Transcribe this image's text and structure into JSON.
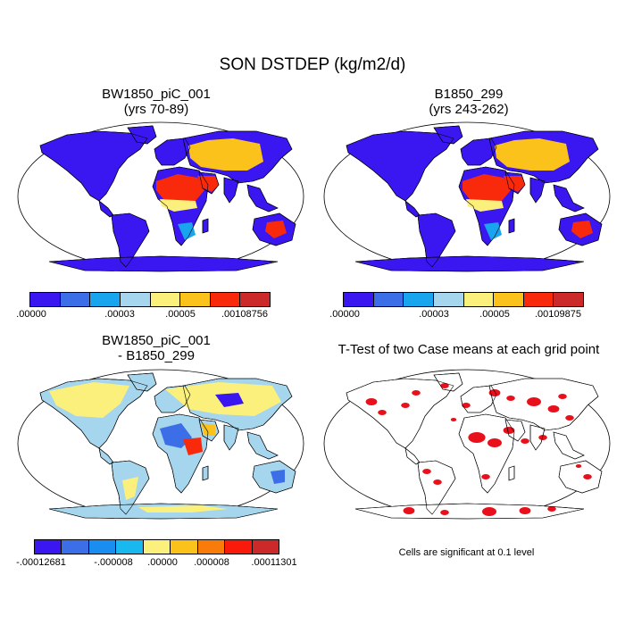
{
  "title": "SON DSTDEP (kg/m2/d)",
  "panels": [
    {
      "id": "case1",
      "title_line1": "BW1850_piC_001",
      "title_line2": "(yrs 70-89)"
    },
    {
      "id": "case2",
      "title_line1": "B1850_299",
      "title_line2": "(yrs 243-262)"
    },
    {
      "id": "diff",
      "title_line1": "BW1850_piC_001",
      "title_line2": "- B1850_299"
    },
    {
      "id": "ttest",
      "title_line1": "T-Test of two Case means at each grid point",
      "title_line2": ""
    }
  ],
  "colorbars": {
    "case1": {
      "colors": [
        "#3a16f0",
        "#3c6ee8",
        "#19a4ee",
        "#a6d5ee",
        "#fbf07c",
        "#fbc21c",
        "#f92a0b",
        "#cc2a2a"
      ],
      "labels": [
        ".00000",
        ".00003",
        ".00005",
        ".00108756"
      ]
    },
    "case2": {
      "colors": [
        "#3a16f0",
        "#3c6ee8",
        "#19a4ee",
        "#a6d5ee",
        "#fbf07c",
        "#fbc21c",
        "#f92a0b",
        "#cc2a2a"
      ],
      "labels": [
        ".00000",
        ".00003",
        ".00005",
        ".00109875"
      ]
    },
    "diff": {
      "colors": [
        "#3a16f0",
        "#3c6ee8",
        "#1a8ef0",
        "#19b8ee",
        "#fbf07c",
        "#fbc21c",
        "#f97c0b",
        "#f91a0b",
        "#cc2a2a"
      ],
      "labels": [
        "-.00012681",
        "-.000008",
        ".00000",
        ".000008",
        ".00011301"
      ]
    }
  },
  "significance_note": "Cells are significant at 0.1 level",
  "colors": {
    "ocean": "#ffffff",
    "land_low": "#3a16f0",
    "diff_land": "#a6d5ee",
    "diff_pos": "#fbf07c",
    "significant": "#e8101a"
  }
}
